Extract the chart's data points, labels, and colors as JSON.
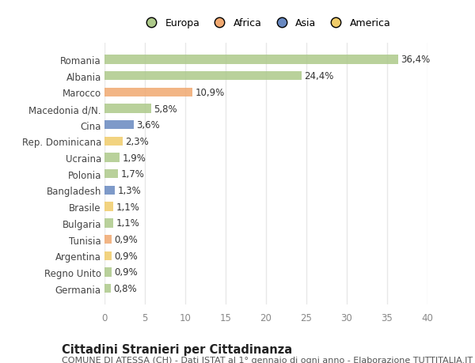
{
  "countries": [
    "Romania",
    "Albania",
    "Marocco",
    "Macedonia d/N.",
    "Cina",
    "Rep. Dominicana",
    "Ucraina",
    "Polonia",
    "Bangladesh",
    "Brasile",
    "Bulgaria",
    "Tunisia",
    "Argentina",
    "Regno Unito",
    "Germania"
  ],
  "values": [
    36.4,
    24.4,
    10.9,
    5.8,
    3.6,
    2.3,
    1.9,
    1.7,
    1.3,
    1.1,
    1.1,
    0.9,
    0.9,
    0.9,
    0.8
  ],
  "labels": [
    "36,4%",
    "24,4%",
    "10,9%",
    "5,8%",
    "3,6%",
    "2,3%",
    "1,9%",
    "1,7%",
    "1,3%",
    "1,1%",
    "1,1%",
    "0,9%",
    "0,9%",
    "0,9%",
    "0,8%"
  ],
  "continents": [
    "Europa",
    "Europa",
    "Africa",
    "Europa",
    "Asia",
    "America",
    "Europa",
    "Europa",
    "Asia",
    "America",
    "Europa",
    "Africa",
    "America",
    "Europa",
    "Europa"
  ],
  "continent_colors": {
    "Europa": "#adc98a",
    "Africa": "#f0a870",
    "Asia": "#6888c0",
    "America": "#f0cc6a"
  },
  "legend_order": [
    "Europa",
    "Africa",
    "Asia",
    "America"
  ],
  "legend_colors": [
    "#adc98a",
    "#f0a870",
    "#6888c0",
    "#f0cc6a"
  ],
  "background_color": "#ffffff",
  "plot_bg_color": "#ffffff",
  "grid_color": "#e8e8e8",
  "title": "Cittadini Stranieri per Cittadinanza",
  "subtitle": "COMUNE DI ATESSA (CH) - Dati ISTAT al 1° gennaio di ogni anno - Elaborazione TUTTITALIA.IT",
  "xlim": [
    0,
    40
  ],
  "xticks": [
    0,
    5,
    10,
    15,
    20,
    25,
    30,
    35,
    40
  ],
  "bar_height": 0.55,
  "label_fontsize": 8.5,
  "tick_fontsize": 8.5,
  "title_fontsize": 10.5,
  "subtitle_fontsize": 8.0
}
